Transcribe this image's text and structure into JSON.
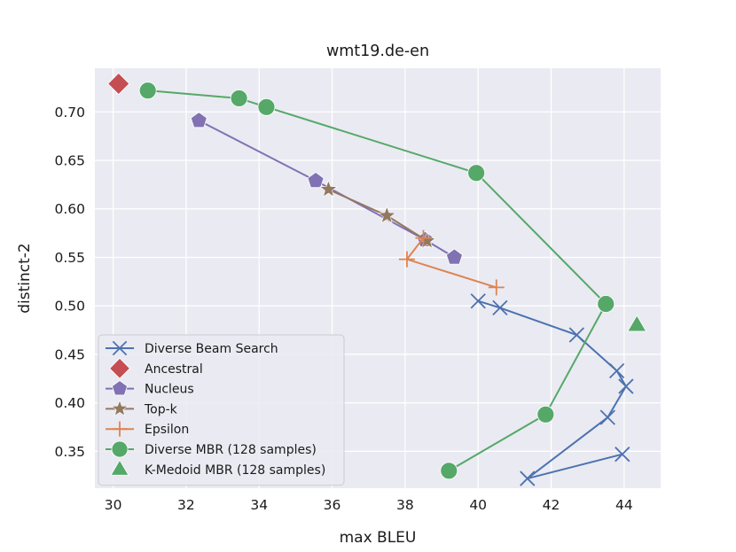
{
  "chart_data": {
    "type": "line",
    "title": "wmt19.de-en",
    "xlabel": "max BLEU",
    "ylabel": "distinct-2",
    "xlim": [
      29.5,
      45.0
    ],
    "ylim": [
      0.312,
      0.745
    ],
    "xticks": [
      30,
      32,
      34,
      36,
      38,
      40,
      42,
      44
    ],
    "yticks": [
      0.35,
      0.4,
      0.45,
      0.5,
      0.55,
      0.6,
      0.65,
      0.7
    ],
    "grid": true,
    "background": "#eaeaf2",
    "legend_position": "lower-left",
    "series": [
      {
        "name": "Diverse Beam Search",
        "color": "#4c72b0",
        "marker": "x",
        "line": true,
        "points": [
          [
            40.0,
            0.505
          ],
          [
            40.6,
            0.498
          ],
          [
            42.7,
            0.47
          ],
          [
            43.8,
            0.433
          ],
          [
            44.05,
            0.417
          ],
          [
            43.55,
            0.385
          ],
          [
            41.35,
            0.322
          ],
          [
            43.95,
            0.347
          ]
        ]
      },
      {
        "name": "Ancestral",
        "color": "#c44e52",
        "marker": "diamond",
        "line": false,
        "points": [
          [
            30.15,
            0.729
          ]
        ]
      },
      {
        "name": "Nucleus",
        "color": "#8172b3",
        "marker": "pentagon",
        "line": true,
        "points": [
          [
            32.35,
            0.691
          ],
          [
            35.55,
            0.629
          ],
          [
            38.55,
            0.568
          ],
          [
            39.35,
            0.55
          ]
        ]
      },
      {
        "name": "Top-k",
        "color": "#937860",
        "marker": "star",
        "line": true,
        "points": [
          [
            35.9,
            0.62
          ],
          [
            37.5,
            0.593
          ],
          [
            38.6,
            0.567
          ]
        ]
      },
      {
        "name": "Epsilon",
        "color": "#dd8452",
        "marker": "plus",
        "line": true,
        "points": [
          [
            38.5,
            0.57
          ],
          [
            38.05,
            0.548
          ],
          [
            40.5,
            0.519
          ]
        ]
      },
      {
        "name": "Diverse MBR (128 samples)",
        "color": "#55a868",
        "marker": "circle",
        "line": true,
        "points": [
          [
            30.95,
            0.722
          ],
          [
            33.45,
            0.714
          ],
          [
            34.2,
            0.705
          ],
          [
            39.95,
            0.637
          ],
          [
            43.5,
            0.502
          ],
          [
            41.85,
            0.388
          ],
          [
            39.2,
            0.33
          ]
        ]
      },
      {
        "name": "K-Medoid MBR (128 samples)",
        "color": "#55a868",
        "marker": "triangle",
        "line": false,
        "points": [
          [
            44.35,
            0.48
          ]
        ]
      }
    ]
  }
}
